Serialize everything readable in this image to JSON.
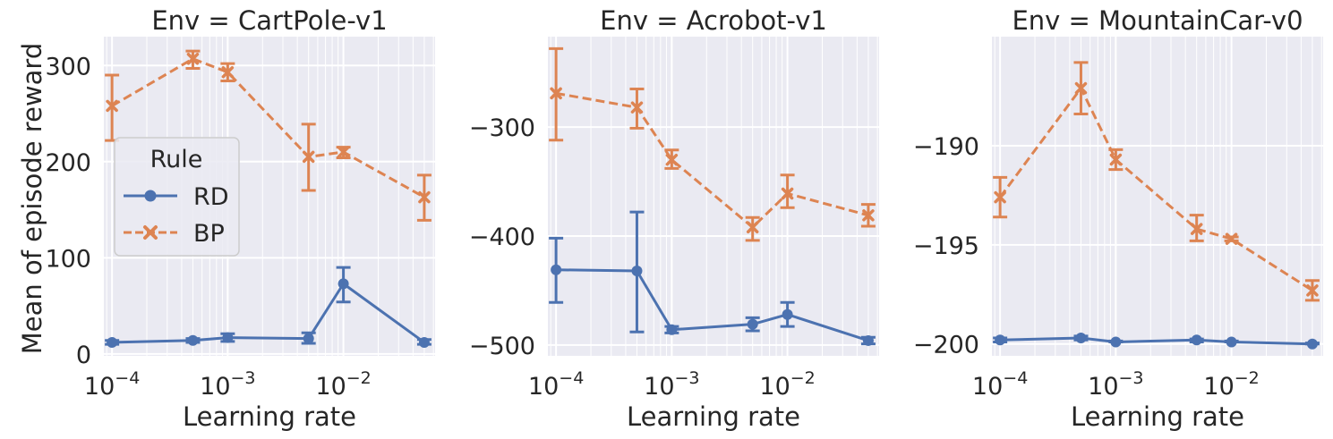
{
  "figure": {
    "ylabel": "Mean of episode reward",
    "legend_title": "Rule"
  },
  "chart_data": [
    {
      "type": "line",
      "title": "Env = CartPole-v1",
      "xlabel": "Learning rate",
      "ylabel": "Mean of episode reward",
      "x_scale": "log",
      "x": [
        0.0001,
        0.0005,
        0.001,
        0.005,
        0.01,
        0.05
      ],
      "ylim": [
        -2,
        330
      ],
      "yticks": [
        0,
        100,
        200,
        300
      ],
      "yticklabels": [
        "0",
        "100",
        "200",
        "300"
      ],
      "xticks": [
        0.0001,
        0.001,
        0.01
      ],
      "series": [
        {
          "name": "RD",
          "values": [
            12,
            14,
            17,
            16,
            73,
            12
          ],
          "err_low": [
            10,
            12,
            13,
            11,
            54,
            10
          ],
          "err_high": [
            14,
            16,
            21,
            22,
            90,
            15
          ]
        },
        {
          "name": "BP",
          "values": [
            258,
            307,
            293,
            205,
            210,
            163
          ],
          "err_low": [
            222,
            297,
            284,
            170,
            204,
            139
          ],
          "err_high": [
            290,
            315,
            302,
            239,
            215,
            186
          ]
        }
      ],
      "legend": {
        "title": "Rule",
        "entries": [
          "RD",
          "BP"
        ],
        "placement": "center-left"
      },
      "grid": true
    },
    {
      "type": "line",
      "title": "Env = Acrobot-v1",
      "xlabel": "Learning rate",
      "x_scale": "log",
      "x": [
        0.0001,
        0.0005,
        0.001,
        0.005,
        0.01,
        0.05
      ],
      "ylim": [
        -510,
        -217
      ],
      "yticks": [
        -500,
        -400,
        -300
      ],
      "yticklabels": [
        "−500",
        "−400",
        "−300"
      ],
      "xticks": [
        0.0001,
        0.001,
        0.01
      ],
      "series": [
        {
          "name": "RD",
          "values": [
            -431,
            -432,
            -486,
            -481,
            -472,
            -496
          ],
          "err_low": [
            -461,
            -488,
            -489,
            -487,
            -483,
            -499
          ],
          "err_high": [
            -402,
            -378,
            -483,
            -475,
            -461,
            -493
          ]
        },
        {
          "name": "BP",
          "values": [
            -269,
            -282,
            -330,
            -392,
            -361,
            -381
          ],
          "err_low": [
            -312,
            -301,
            -338,
            -404,
            -374,
            -391
          ],
          "err_high": [
            -228,
            -265,
            -321,
            -383,
            -344,
            -371
          ]
        }
      ],
      "grid": true
    },
    {
      "type": "line",
      "title": "Env = MountainCar-v0",
      "xlabel": "Learning rate",
      "x_scale": "log",
      "x": [
        0.0001,
        0.0005,
        0.001,
        0.005,
        0.01,
        0.05
      ],
      "ylim": [
        -200.6,
        -184.5
      ],
      "yticks": [
        -200,
        -195,
        -190
      ],
      "yticklabels": [
        "−200",
        "−195",
        "−190"
      ],
      "xticks": [
        0.0001,
        0.001,
        0.01
      ],
      "series": [
        {
          "name": "RD",
          "values": [
            -199.8,
            -199.7,
            -199.9,
            -199.8,
            -199.9,
            -200.0
          ],
          "err_low": [
            -199.9,
            -199.8,
            -199.9,
            -199.9,
            -199.9,
            -200.0
          ],
          "err_high": [
            -199.7,
            -199.6,
            -199.85,
            -199.75,
            -199.85,
            -199.95
          ]
        },
        {
          "name": "BP",
          "values": [
            -192.6,
            -187.1,
            -190.7,
            -194.2,
            -194.7,
            -197.3
          ],
          "err_low": [
            -193.6,
            -188.4,
            -191.2,
            -194.8,
            -194.8,
            -197.8
          ],
          "err_high": [
            -191.6,
            -185.8,
            -190.2,
            -193.5,
            -194.6,
            -196.8
          ]
        }
      ],
      "grid": true
    }
  ],
  "colors": {
    "RD": "#4c72b0",
    "BP": "#dd8452",
    "axes_bg": "#eaeaf2",
    "grid": "#ffffff"
  }
}
